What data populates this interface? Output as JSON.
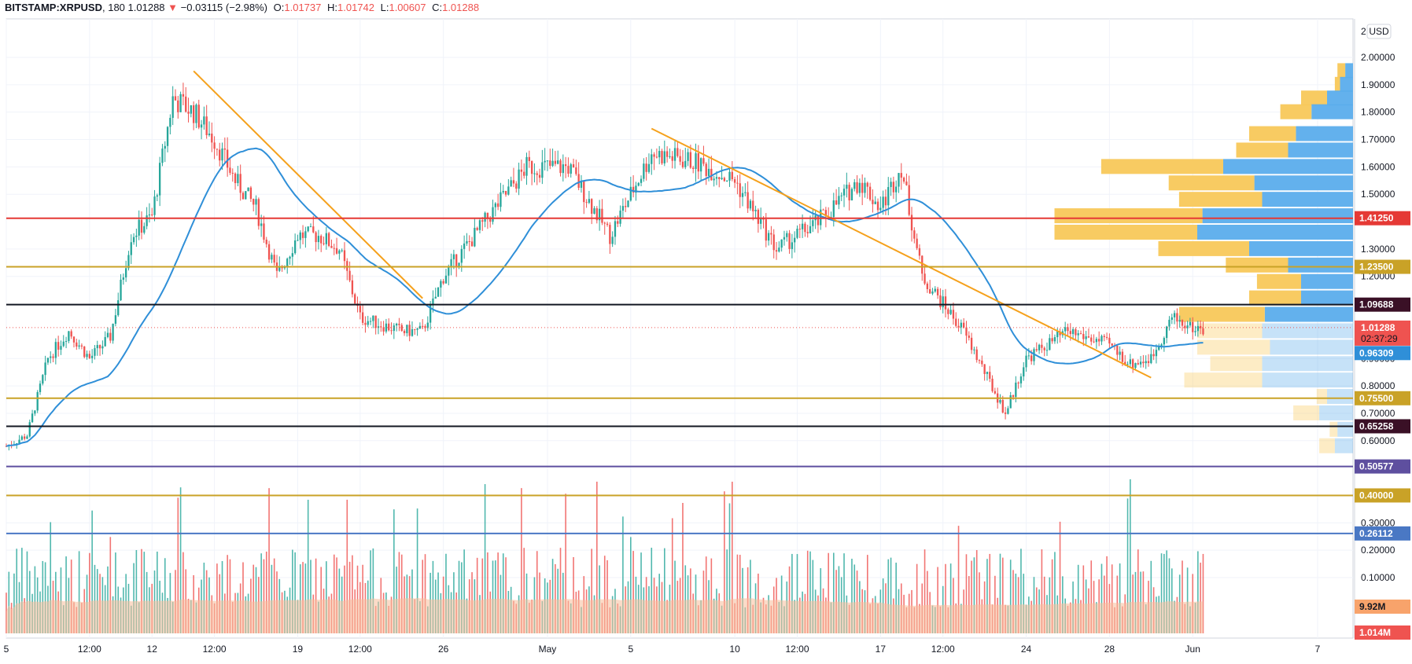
{
  "header": {
    "symbol": "BITSTAMP:XRPUSD",
    "interval": "180",
    "last": "1.01288",
    "change": "−0.03115 (−2.98%)",
    "o_label": "O:",
    "o": "1.01737",
    "h_label": "H:",
    "h": "1.01742",
    "l_label": "L:",
    "l": "1.00607",
    "c_label": "C:",
    "c": "1.01288"
  },
  "colors": {
    "up": "#26a69a",
    "down": "#ef5350",
    "ma": "#2f8fd8",
    "trend": "#f5a11c",
    "vp_buy": "#5badec",
    "vp_sell": "#f8c85a",
    "vol_ma": "#f8bd9a"
  },
  "chart_data": {
    "type": "candlestick",
    "currency": "USD",
    "y_axis_ticks": [
      "2.00000",
      "1.90000",
      "1.80000",
      "1.70000",
      "1.60000",
      "1.50000",
      "1.30000",
      "1.20000",
      "0.90000",
      "0.80000",
      "0.70000",
      "0.60000",
      "0.30000",
      "0.20000",
      "0.10000"
    ],
    "y_tick_values": [
      2.0,
      1.9,
      1.8,
      1.7,
      1.6,
      1.5,
      1.3,
      1.2,
      0.9,
      0.8,
      0.7,
      0.6,
      0.3,
      0.2,
      0.1
    ],
    "y_top_tick_partial": "2.",
    "x_axis_ticks": [
      "5",
      "12:00",
      "12",
      "12:00",
      "19",
      "12:00",
      "26",
      "May",
      "5",
      "10",
      "12:00",
      "17",
      "12:00",
      "24",
      "28",
      "Jun",
      "7"
    ],
    "x_tick_dates": [
      "Apr 5",
      "Apr 9",
      "Apr 12",
      "Apr 15",
      "Apr 19",
      "Apr 22",
      "Apr 26",
      "May 1",
      "May 5",
      "May 10",
      "May 13",
      "May 17",
      "May 20",
      "May 24",
      "May 28",
      "Jun 1",
      "Jun 7"
    ],
    "price_keypoints": [
      [
        "Apr 5",
        0.58
      ],
      [
        "Apr 6",
        0.62
      ],
      [
        "Apr 7",
        0.9
      ],
      [
        "Apr 8",
        1.0
      ],
      [
        "Apr 9",
        0.9
      ],
      [
        "Apr 10",
        0.98
      ],
      [
        "Apr 11",
        1.35
      ],
      [
        "Apr 12",
        1.42
      ],
      [
        "Apr 13",
        1.85
      ],
      [
        "Apr 14",
        1.8
      ],
      [
        "Apr 15",
        1.7
      ],
      [
        "Apr 16",
        1.55
      ],
      [
        "Apr 17",
        1.45
      ],
      [
        "Apr 18",
        1.2
      ],
      [
        "Apr 19",
        1.35
      ],
      [
        "Apr 20",
        1.35
      ],
      [
        "Apr 21",
        1.3
      ],
      [
        "Apr 22",
        1.05
      ],
      [
        "Apr 24",
        1.0
      ],
      [
        "Apr 25",
        1.0
      ],
      [
        "Apr 26",
        1.2
      ],
      [
        "Apr 28",
        1.4
      ],
      [
        "Apr 30",
        1.6
      ],
      [
        "May 2",
        1.6
      ],
      [
        "May 4",
        1.35
      ],
      [
        "May 6",
        1.65
      ],
      [
        "May 8",
        1.62
      ],
      [
        "May 10",
        1.55
      ],
      [
        "May 12",
        1.3
      ],
      [
        "May 14",
        1.4
      ],
      [
        "May 16",
        1.55
      ],
      [
        "May 17",
        1.45
      ],
      [
        "May 18",
        1.6
      ],
      [
        "May 19",
        1.2
      ],
      [
        "May 20",
        1.1
      ],
      [
        "May 21",
        1.0
      ],
      [
        "May 22",
        0.85
      ],
      [
        "May 23",
        0.7
      ],
      [
        "May 24",
        0.9
      ],
      [
        "May 26",
        1.0
      ],
      [
        "May 28",
        0.95
      ],
      [
        "May 29",
        0.88
      ],
      [
        "May 30",
        0.9
      ],
      [
        "May 31",
        1.05
      ],
      [
        "Jun 1",
        1.01
      ]
    ],
    "moving_average": {
      "name": "MA",
      "last_value": "0.96309"
    },
    "horizontal_levels": [
      {
        "value": 1.4125,
        "label": "1.41250",
        "color": "#e53935"
      },
      {
        "value": 1.235,
        "label": "1.23500",
        "color": "#c9a227"
      },
      {
        "value": 1.09688,
        "label": "1.09688",
        "color": "#131722"
      },
      {
        "value": 0.755,
        "label": "0.75500",
        "color": "#c9a227"
      },
      {
        "value": 0.65258,
        "label": "0.65258",
        "color": "#131722"
      },
      {
        "value": 0.50577,
        "label": "0.50577",
        "color": "#5e4f9f"
      },
      {
        "value": 0.4,
        "label": "0.40000",
        "color": "#c9a227"
      },
      {
        "value": 0.26112,
        "label": "0.26112",
        "color": "#4a78c4"
      }
    ],
    "trendlines": [
      {
        "from": [
          "Apr 14",
          1.95
        ],
        "to": [
          "Apr 25",
          1.12
        ]
      },
      {
        "from": [
          "May 6",
          1.74
        ],
        "to": [
          "May 30",
          0.83
        ]
      }
    ],
    "current_price": {
      "label": "1.01288",
      "countdown": "02:37:29"
    },
    "volume": {
      "ma_label": "9.92M",
      "last_label": "1.014M"
    },
    "volume_profile_rows": [
      {
        "price": 1.95,
        "buy": 0.03,
        "sell": 0.03
      },
      {
        "price": 1.9,
        "buy": 0.05,
        "sell": 0.02
      },
      {
        "price": 1.85,
        "buy": 0.1,
        "sell": 0.1
      },
      {
        "price": 1.8,
        "buy": 0.16,
        "sell": 0.12
      },
      {
        "price": 1.72,
        "buy": 0.22,
        "sell": 0.18
      },
      {
        "price": 1.66,
        "buy": 0.25,
        "sell": 0.2
      },
      {
        "price": 1.6,
        "buy": 0.5,
        "sell": 0.47
      },
      {
        "price": 1.54,
        "buy": 0.38,
        "sell": 0.33
      },
      {
        "price": 1.48,
        "buy": 0.35,
        "sell": 0.32
      },
      {
        "price": 1.42,
        "buy": 0.58,
        "sell": 0.57
      },
      {
        "price": 1.36,
        "buy": 0.6,
        "sell": 0.55
      },
      {
        "price": 1.3,
        "buy": 0.4,
        "sell": 0.35
      },
      {
        "price": 1.24,
        "buy": 0.25,
        "sell": 0.24
      },
      {
        "price": 1.18,
        "buy": 0.2,
        "sell": 0.17
      },
      {
        "price": 1.12,
        "buy": 0.2,
        "sell": 0.2
      },
      {
        "price": 1.06,
        "buy": 0.34,
        "sell": 0.33
      },
      {
        "price": 1.0,
        "buy": 0.35,
        "sell": 0.25
      },
      {
        "price": 0.94,
        "buy": 0.32,
        "sell": 0.28
      },
      {
        "price": 0.88,
        "buy": 0.35,
        "sell": 0.2
      },
      {
        "price": 0.82,
        "buy": 0.35,
        "sell": 0.3
      },
      {
        "price": 0.76,
        "buy": 0.1,
        "sell": 0.04
      },
      {
        "price": 0.7,
        "buy": 0.13,
        "sell": 0.1
      },
      {
        "price": 0.64,
        "buy": 0.06,
        "sell": 0.03
      },
      {
        "price": 0.58,
        "buy": 0.07,
        "sell": 0.06
      }
    ]
  }
}
